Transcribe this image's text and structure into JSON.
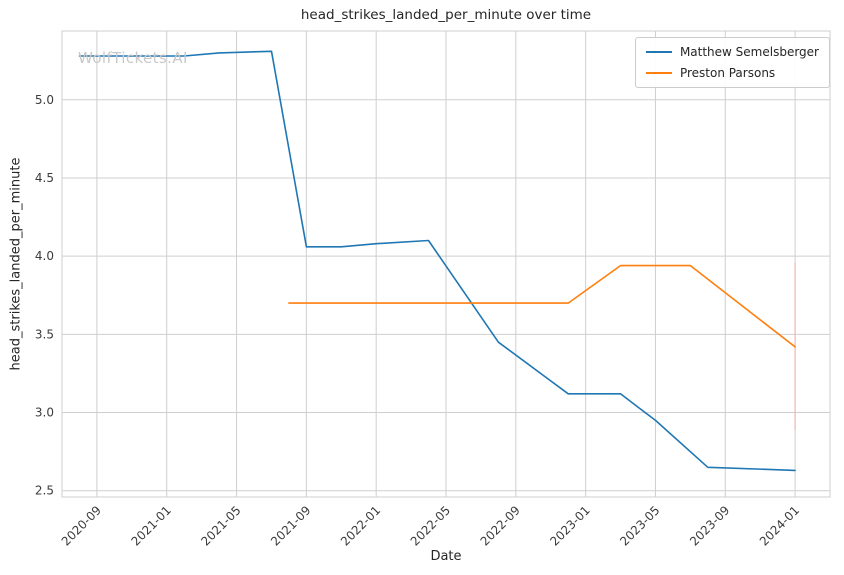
{
  "chart_data": {
    "type": "line",
    "title": "head_strikes_landed_per_minute over time",
    "xlabel": "Date",
    "ylabel": "head_strikes_landed_per_minute",
    "watermark": "WolfTickets.AI",
    "grid": true,
    "legend_position": "upper right",
    "x_tick_labels": [
      "2020-09",
      "2021-01",
      "2021-05",
      "2021-09",
      "2022-01",
      "2022-05",
      "2022-09",
      "2023-01",
      "2023-05",
      "2023-09",
      "2024-01"
    ],
    "y_ticks": [
      2.5,
      3.0,
      3.5,
      4.0,
      4.5,
      5.0
    ],
    "xlim": [
      "2020-07",
      "2024-03"
    ],
    "ylim": [
      2.46,
      5.44
    ],
    "series": [
      {
        "name": "Matthew Semelsberger",
        "color": "#1f77b4",
        "points": [
          [
            "2020-08",
            5.28
          ],
          [
            "2021-02",
            5.28
          ],
          [
            "2021-04",
            5.3
          ],
          [
            "2021-07",
            5.31
          ],
          [
            "2021-09",
            4.06
          ],
          [
            "2021-11",
            4.06
          ],
          [
            "2022-01",
            4.08
          ],
          [
            "2022-04",
            4.1
          ],
          [
            "2022-08",
            3.45
          ],
          [
            "2022-12",
            3.12
          ],
          [
            "2023-03",
            3.12
          ],
          [
            "2023-05",
            2.95
          ],
          [
            "2023-08",
            2.65
          ],
          [
            "2024-01",
            2.63
          ]
        ]
      },
      {
        "name": "Preston Parsons",
        "color": "#ff7f0e",
        "points": [
          [
            "2021-08",
            3.7
          ],
          [
            "2022-12",
            3.7
          ],
          [
            "2023-03",
            3.94
          ],
          [
            "2023-07",
            3.94
          ],
          [
            "2024-01",
            3.42
          ]
        ]
      }
    ],
    "annotations": [
      {
        "type": "vline",
        "x": "2024-01",
        "y1": 2.89,
        "y2": 3.96,
        "color": "#f1b6ae",
        "label": "event-marker-line"
      }
    ]
  }
}
